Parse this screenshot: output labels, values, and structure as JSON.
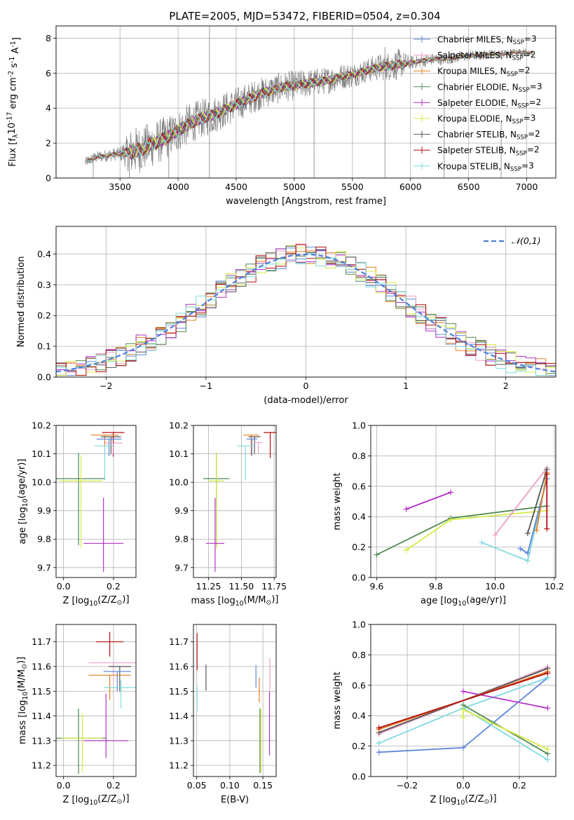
{
  "figure_title": "PLATE=2005, MJD=53472, FIBERID=0504, z=0.304",
  "colors": {
    "Chabrier MILES": "#5a86d6",
    "Salpeter MILES": "#e8a0c8",
    "Kroupa MILES": "#e57d1f",
    "Chabrier ELODIE": "#4f8a4f",
    "Salpeter ELODIE": "#b22fc9",
    "Kroupa ELODIE": "#d7ea43",
    "Chabrier STELIB": "#555555",
    "Salpeter STELIB": "#b30e0e",
    "Kroupa STELIB": "#7fdbe0",
    "data": "#7f7f7f",
    "normal": "#4d7fd6"
  },
  "chart_data": [
    {
      "id": "spectrum",
      "type": "line",
      "title": "PLATE=2005, MJD=53472, FIBERID=0504, z=0.304",
      "xlabel": "wavelength [Angstrom, rest frame]",
      "ylabel": "Flux [f_λ10^-17 erg cm^-2 s^-1 A^-1]",
      "xlim": [
        2950,
        7250
      ],
      "ylim": [
        0,
        8.7
      ],
      "xticks": [
        3500,
        4000,
        4500,
        5000,
        5500,
        6000,
        6500,
        7000
      ],
      "yticks": [
        0,
        2,
        4,
        6,
        8
      ],
      "grid": true,
      "legend_position": "top-right",
      "series": [
        {
          "name": "Chabrier MILES, N_SSP=3",
          "key": "Chabrier MILES"
        },
        {
          "name": "Salpeter MILES, N_SSP=2",
          "key": "Salpeter MILES"
        },
        {
          "name": "Kroupa MILES, N_SSP=2",
          "key": "Kroupa MILES"
        },
        {
          "name": "Chabrier ELODIE, N_SSP=3",
          "key": "Chabrier ELODIE"
        },
        {
          "name": "Salpeter ELODIE, N_SSP=2",
          "key": "Salpeter ELODIE"
        },
        {
          "name": "Kroupa ELODIE, N_SSP=3",
          "key": "Kroupa ELODIE"
        },
        {
          "name": "Chabrier STELIB, N_SSP=2",
          "key": "Chabrier STELIB"
        },
        {
          "name": "Salpeter STELIB, N_SSP=2",
          "key": "Salpeter STELIB"
        },
        {
          "name": "Kroupa STELIB, N_SSP=3",
          "key": "Kroupa STELIB"
        }
      ],
      "continuum": {
        "x": [
          3200,
          3300,
          3400,
          3500,
          3600,
          3700,
          3800,
          3900,
          4000,
          4100,
          4200,
          4300,
          4400,
          4500,
          4600,
          4700,
          4800,
          4900,
          5000,
          5100,
          5200,
          5300,
          5400,
          5500,
          5600,
          5700,
          5800,
          5900,
          6000,
          6100,
          6200,
          6300,
          6400,
          6500,
          6600,
          6700,
          6800,
          6900,
          7000,
          7050
        ],
        "y": [
          0.9,
          1.2,
          1.3,
          1.4,
          1.5,
          1.7,
          2.0,
          2.3,
          2.7,
          3.1,
          3.4,
          3.6,
          3.9,
          4.2,
          4.5,
          4.8,
          5.0,
          5.2,
          5.3,
          5.4,
          5.5,
          5.6,
          5.8,
          5.9,
          6.1,
          6.3,
          6.4,
          6.5,
          6.6,
          6.7,
          6.8,
          6.8,
          6.9,
          7.0,
          7.0,
          7.1,
          7.1,
          7.2,
          7.2,
          7.2
        ]
      },
      "noise_amplitude": {
        "x": [
          3200,
          3500,
          3600,
          4500,
          5600,
          5900,
          6000,
          7050
        ],
        "y": [
          0.3,
          0.4,
          1.4,
          1.0,
          0.7,
          0.9,
          0.4,
          0.2
        ]
      },
      "spikes": [
        {
          "x": 3270,
          "y_range": [
            0,
            1.4
          ]
        },
        {
          "x": 3580,
          "y_range": [
            0,
            2.0
          ]
        },
        {
          "x": 3920,
          "y_range": [
            0,
            2.4
          ]
        },
        {
          "x": 4270,
          "y_range": [
            0,
            8.7
          ]
        },
        {
          "x": 5170,
          "y_range": [
            0,
            5.4
          ]
        },
        {
          "x": 5780,
          "y_range": [
            0,
            7.5
          ]
        },
        {
          "x": 6290,
          "y_range": [
            0,
            6.0
          ]
        },
        {
          "x": 6780,
          "y_range": [
            0,
            3.2
          ]
        }
      ]
    },
    {
      "id": "residuals",
      "type": "line",
      "xlabel": "(data-model)/error",
      "ylabel": "Normed distribution",
      "xlim": [
        -2.5,
        2.5
      ],
      "ylim": [
        0,
        0.49
      ],
      "xticks": [
        -2,
        -1,
        0,
        1,
        2
      ],
      "yticks": [
        0.0,
        0.1,
        0.2,
        0.3,
        0.4
      ],
      "grid": true,
      "legend_position": "top-right",
      "legend": [
        "𝒩(0,1)"
      ],
      "bin_width": 0.1,
      "reference_curve": {
        "name": "𝒩(0,1)",
        "mean": 0,
        "std": 1,
        "style": "dashed"
      }
    },
    {
      "id": "age_vs_Z",
      "type": "scatter",
      "xlabel": "Z [log10(Z/Z⊙)]",
      "ylabel": "age  [log10(age/yr)]",
      "xlim": [
        -0.03,
        0.29
      ],
      "ylim": [
        9.665,
        10.2
      ],
      "xticks": [
        0.0,
        0.2
      ],
      "yticks": [
        9.7,
        9.8,
        9.9,
        10.0,
        10.1,
        10.2
      ],
      "grid": true,
      "points": [
        {
          "key": "Salpeter STELIB",
          "x": 0.199,
          "y": 10.175,
          "xerr": 0.045,
          "yerr": [
            0.085,
            0.0
          ]
        },
        {
          "key": "Kroupa MILES",
          "x": 0.165,
          "y": 10.166,
          "xerr": 0.055,
          "yerr": [
            0.07,
            0.0
          ]
        },
        {
          "key": "Chabrier STELIB",
          "x": 0.19,
          "y": 10.16,
          "xerr": 0.04,
          "yerr": [
            0.06,
            0.0
          ]
        },
        {
          "key": "Chabrier MILES",
          "x": 0.182,
          "y": 10.152,
          "xerr": 0.05,
          "yerr": [
            0.06,
            0.0
          ]
        },
        {
          "key": "Salpeter MILES",
          "x": 0.2,
          "y": 10.138,
          "xerr": 0.035,
          "yerr": [
            0.04,
            0.0
          ]
        },
        {
          "key": "Kroupa STELIB",
          "x": 0.165,
          "y": 10.128,
          "xerr": 0.04,
          "yerr": [
            0.12,
            0.0
          ]
        },
        {
          "key": "Chabrier ELODIE",
          "x": 0.06,
          "y": 10.013,
          "xerr": 0.105,
          "yerr": [
            0.235,
            0.09
          ]
        },
        {
          "key": "Kroupa ELODIE",
          "x": 0.07,
          "y": 10.005,
          "xerr": 0.085,
          "yerr": [
            0.235,
            0.09
          ]
        },
        {
          "key": "Salpeter ELODIE",
          "x": 0.16,
          "y": 9.785,
          "xerr": 0.08,
          "yerr": [
            0.1,
            0.16
          ]
        }
      ]
    },
    {
      "id": "age_vs_mass",
      "type": "scatter",
      "xlabel": "mass [log10(M/M⊙)]",
      "ylabel": "",
      "xlim": [
        11.135,
        11.765
      ],
      "ylim": [
        9.665,
        10.2
      ],
      "xticks": [
        11.25,
        11.5,
        11.75
      ],
      "yticks": [
        9.7,
        9.8,
        9.9,
        10.0,
        10.1,
        10.2
      ],
      "grid": true,
      "points": [
        {
          "key": "Salpeter STELIB",
          "x": 11.72,
          "y": 10.175,
          "xerr": 0.05,
          "yerr": [
            0.09,
            0.0
          ]
        },
        {
          "key": "Kroupa MILES",
          "x": 11.575,
          "y": 10.166,
          "xerr": 0.06,
          "yerr": [
            0.07,
            0.0
          ]
        },
        {
          "key": "Chabrier STELIB",
          "x": 11.6,
          "y": 10.16,
          "xerr": 0.045,
          "yerr": [
            0.06,
            0.0
          ]
        },
        {
          "key": "Chabrier MILES",
          "x": 11.58,
          "y": 10.152,
          "xerr": 0.04,
          "yerr": [
            0.06,
            0.0
          ]
        },
        {
          "key": "Salpeter MILES",
          "x": 11.63,
          "y": 10.14,
          "xerr": 0.03,
          "yerr": [
            0.04,
            0.0
          ]
        },
        {
          "key": "Kroupa STELIB",
          "x": 11.53,
          "y": 10.128,
          "xerr": 0.06,
          "yerr": [
            0.12,
            0.0
          ]
        },
        {
          "key": "Chabrier ELODIE",
          "x": 11.31,
          "y": 10.013,
          "xerr": 0.1,
          "yerr": [
            0.235,
            0.09
          ]
        },
        {
          "key": "Kroupa ELODIE",
          "x": 11.31,
          "y": 10.005,
          "xerr": 0.06,
          "yerr": [
            0.24,
            0.1
          ]
        },
        {
          "key": "Salpeter ELODIE",
          "x": 11.3,
          "y": 9.785,
          "xerr": 0.07,
          "yerr": [
            0.1,
            0.16
          ]
        }
      ]
    },
    {
      "id": "weight_vs_age",
      "type": "line",
      "xlabel": "age  [log10(age/yr)]",
      "ylabel": "mass weight",
      "xlim": [
        9.58,
        10.205
      ],
      "ylim": [
        0,
        1.0
      ],
      "xticks": [
        9.6,
        9.8,
        10.0,
        10.2
      ],
      "yticks": [
        0.0,
        0.2,
        0.4,
        0.6,
        0.8,
        1.0
      ],
      "grid": true,
      "series": [
        {
          "key": "Chabrier ELODIE",
          "x": [
            9.6,
            9.85,
            10.175
          ],
          "y": [
            0.15,
            0.39,
            0.47
          ]
        },
        {
          "key": "Kroupa ELODIE",
          "x": [
            9.7,
            9.85,
            10.175
          ],
          "y": [
            0.18,
            0.38,
            0.44
          ]
        },
        {
          "key": "Salpeter ELODIE",
          "x": [
            9.7,
            9.85
          ],
          "y": [
            0.45,
            0.56
          ]
        },
        {
          "key": "Kroupa STELIB",
          "x": [
            9.955,
            10.11,
            10.175
          ],
          "y": [
            0.23,
            0.11,
            0.65
          ]
        },
        {
          "key": "Salpeter MILES",
          "x": [
            10.0,
            10.175
          ],
          "y": [
            0.28,
            0.72
          ]
        },
        {
          "key": "Chabrier MILES",
          "x": [
            10.085,
            10.11,
            10.175
          ],
          "y": [
            0.19,
            0.16,
            0.65
          ]
        },
        {
          "key": "Kroupa MILES",
          "x": [
            10.14,
            10.175
          ],
          "y": [
            0.31,
            0.69
          ]
        },
        {
          "key": "Chabrier STELIB",
          "x": [
            10.11,
            10.175
          ],
          "y": [
            0.29,
            0.71
          ]
        },
        {
          "key": "Salpeter STELIB",
          "x": [
            10.175,
            10.175
          ],
          "y": [
            0.32,
            0.68
          ]
        }
      ]
    },
    {
      "id": "mass_vs_Z",
      "type": "scatter",
      "xlabel": "Z [log10(Z/Z⊙)]",
      "ylabel": "mass [log10(M/M⊙)]",
      "xlim": [
        -0.03,
        0.29
      ],
      "ylim": [
        11.155,
        11.77
      ],
      "xticks": [
        0.0,
        0.2
      ],
      "yticks": [
        11.2,
        11.3,
        11.4,
        11.5,
        11.6,
        11.7
      ],
      "grid": true,
      "points": [
        {
          "key": "Salpeter STELIB",
          "x": 0.185,
          "y": 11.7,
          "xerr": 0.055,
          "yerr": [
            0.06,
            0.04
          ]
        },
        {
          "key": "Salpeter MILES",
          "x": 0.2,
          "y": 11.615,
          "xerr": 0.1,
          "yerr": [
            0.075,
            0.0
          ]
        },
        {
          "key": "Chabrier STELIB",
          "x": 0.225,
          "y": 11.6,
          "xerr": 0.045,
          "yerr": [
            0.1,
            0.0
          ]
        },
        {
          "key": "Chabrier MILES",
          "x": 0.215,
          "y": 11.58,
          "xerr": 0.055,
          "yerr": [
            0.08,
            0.0
          ]
        },
        {
          "key": "Kroupa MILES",
          "x": 0.185,
          "y": 11.565,
          "xerr": 0.085,
          "yerr": [
            0.1,
            0.0
          ]
        },
        {
          "key": "Kroupa STELIB",
          "x": 0.23,
          "y": 11.515,
          "xerr": 0.07,
          "yerr": [
            0.085,
            0.03
          ]
        },
        {
          "key": "Salpeter ELODIE",
          "x": 0.17,
          "y": 11.3,
          "xerr": 0.09,
          "yerr": [
            0.07,
            0.19
          ]
        },
        {
          "key": "Chabrier ELODIE",
          "x": 0.06,
          "y": 11.31,
          "xerr": 0.11,
          "yerr": [
            0.145,
            0.12
          ]
        },
        {
          "key": "Kroupa ELODIE",
          "x": 0.075,
          "y": 11.31,
          "xerr": 0.08,
          "yerr": [
            0.14,
            0.1
          ]
        }
      ]
    },
    {
      "id": "mass_vs_ebv",
      "type": "scatter",
      "xlabel": "E(B-V)",
      "ylabel": "",
      "xlim": [
        0.045,
        0.17
      ],
      "ylim": [
        11.155,
        11.77
      ],
      "xticks": [
        0.05,
        0.1,
        0.15
      ],
      "yticks": [
        11.2,
        11.3,
        11.4,
        11.5,
        11.6,
        11.7
      ],
      "grid": true,
      "points": [
        {
          "key": "Salpeter STELIB",
          "x": 0.0505,
          "y": 11.66,
          "yerr": 0.075
        },
        {
          "key": "Chabrier STELIB",
          "x": 0.064,
          "y": 11.555,
          "yerr": 0.052
        },
        {
          "key": "Kroupa STELIB",
          "x": 0.0505,
          "y": 11.47,
          "yerr": 0.05
        },
        {
          "key": "Chabrier MILES",
          "x": 0.1395,
          "y": 11.56,
          "yerr": 0.045
        },
        {
          "key": "Kroupa MILES",
          "x": 0.1445,
          "y": 11.505,
          "yerr": 0.05
        },
        {
          "key": "Salpeter MILES",
          "x": 0.1605,
          "y": 11.57,
          "yerr": 0.065
        },
        {
          "key": "Salpeter ELODIE",
          "x": 0.16,
          "y": 11.37,
          "yerr": 0.13
        },
        {
          "key": "Chabrier ELODIE",
          "x": 0.1455,
          "y": 11.3,
          "yerr": 0.13
        },
        {
          "key": "Kroupa ELODIE",
          "x": 0.147,
          "y": 11.3,
          "yerr": 0.13
        }
      ]
    },
    {
      "id": "weight_vs_Z",
      "type": "line",
      "xlabel": "Z [log10(Z/Z⊙)]",
      "ylabel": "mass weight",
      "xlim": [
        -0.33,
        0.33
      ],
      "ylim": [
        0,
        1.0
      ],
      "xticks": [
        -0.2,
        0.0,
        0.2
      ],
      "yticks": [
        0.0,
        0.2,
        0.4,
        0.6,
        0.8,
        1.0
      ],
      "grid": true,
      "series": [
        {
          "key": "Chabrier MILES",
          "x": [
            -0.301,
            0.0,
            0.301
          ],
          "y": [
            0.16,
            0.19,
            0.65
          ]
        },
        {
          "key": "Kroupa STELIB",
          "x": [
            -0.301,
            0.0,
            0.301
          ],
          "y": [
            0.22,
            0.45,
            0.11
          ]
        },
        {
          "key": "Kroupa STELIB",
          "x": [
            0.0,
            0.301
          ],
          "y": [
            0.45,
            0.65
          ]
        },
        {
          "key": "Chabrier ELODIE",
          "x": [
            0.0,
            0.301
          ],
          "y": [
            0.47,
            0.15
          ]
        },
        {
          "key": "Kroupa ELODIE",
          "x": [
            0.0,
            0.0,
            0.301
          ],
          "y": [
            0.39,
            0.44,
            0.18
          ]
        },
        {
          "key": "Salpeter ELODIE",
          "x": [
            0.0,
            0.301
          ],
          "y": [
            0.56,
            0.45
          ]
        },
        {
          "key": "Salpeter MILES",
          "x": [
            -0.301,
            0.301
          ],
          "y": [
            0.28,
            0.72
          ]
        },
        {
          "key": "Chabrier STELIB",
          "x": [
            -0.301,
            0.301
          ],
          "y": [
            0.29,
            0.71
          ]
        },
        {
          "key": "Kroupa MILES",
          "x": [
            -0.301,
            0.301
          ],
          "y": [
            0.31,
            0.69
          ]
        },
        {
          "key": "Salpeter STELIB",
          "x": [
            -0.301,
            0.301
          ],
          "y": [
            0.32,
            0.68
          ]
        }
      ]
    }
  ]
}
